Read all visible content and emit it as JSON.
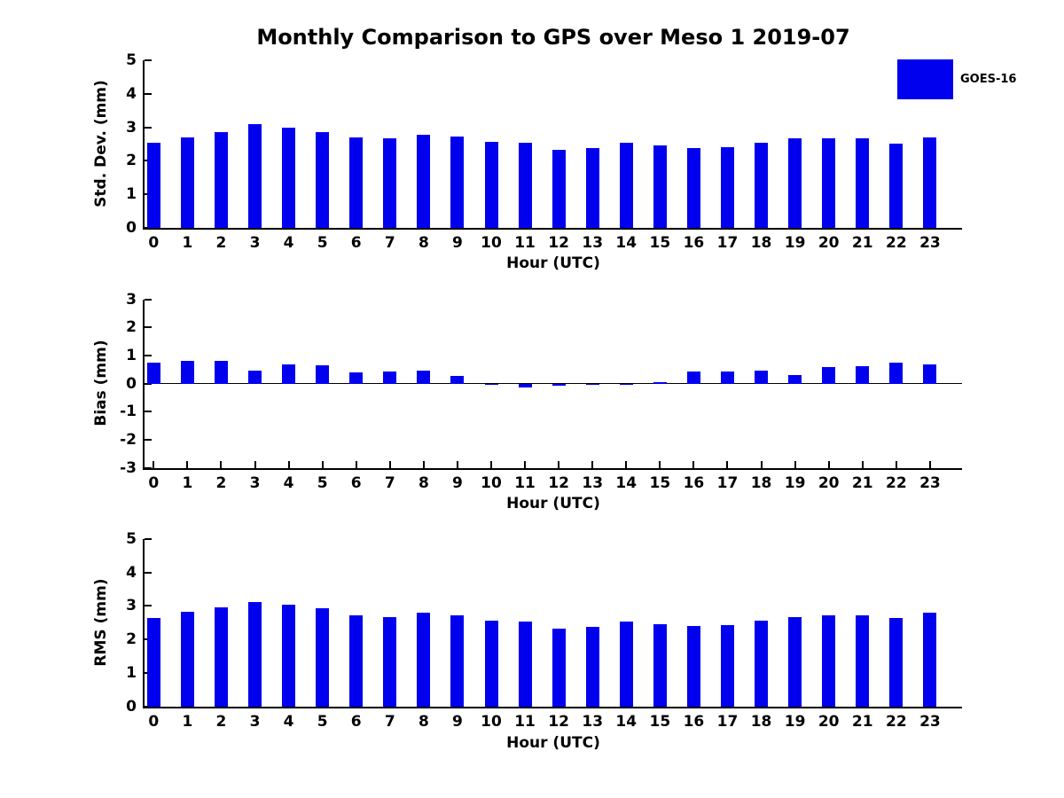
{
  "title": "Monthly Comparison to GPS over Meso 1 2019-07",
  "legend": {
    "label": "GOES-16",
    "swatch_color": "#0000EE",
    "position": "top-right"
  },
  "colors": {
    "bar": "#0000EE",
    "axis": "#000000",
    "text": "#000000",
    "background": "#FFFFFF"
  },
  "chart_data": [
    {
      "type": "bar",
      "panel": "std_dev",
      "ylabel": "Std. Dev. (mm)",
      "xlabel": "Hour (UTC)",
      "ylim": [
        0,
        5
      ],
      "yticks": [
        0,
        1,
        2,
        3,
        4,
        5
      ],
      "grid": false,
      "legend_entries": [
        "GOES-16"
      ],
      "categories": [
        "0",
        "1",
        "2",
        "3",
        "4",
        "5",
        "6",
        "7",
        "8",
        "9",
        "10",
        "11",
        "12",
        "13",
        "14",
        "15",
        "16",
        "17",
        "18",
        "19",
        "20",
        "21",
        "22",
        "23"
      ],
      "series": [
        {
          "name": "GOES-16",
          "values": [
            2.55,
            2.71,
            2.86,
            3.1,
            2.99,
            2.86,
            2.71,
            2.66,
            2.79,
            2.73,
            2.57,
            2.53,
            2.33,
            2.37,
            2.54,
            2.45,
            2.37,
            2.4,
            2.53,
            2.66,
            2.66,
            2.68,
            2.52,
            2.71
          ]
        }
      ]
    },
    {
      "type": "bar",
      "panel": "bias",
      "ylabel": "Bias (mm)",
      "xlabel": "Hour (UTC)",
      "ylim": [
        -3,
        3
      ],
      "yticks": [
        -3,
        -2,
        -1,
        0,
        1,
        2,
        3
      ],
      "grid": false,
      "categories": [
        "0",
        "1",
        "2",
        "3",
        "4",
        "5",
        "6",
        "7",
        "8",
        "9",
        "10",
        "11",
        "12",
        "13",
        "14",
        "15",
        "16",
        "17",
        "18",
        "19",
        "20",
        "21",
        "22",
        "23"
      ],
      "series": [
        {
          "name": "GOES-16",
          "values": [
            0.74,
            0.82,
            0.82,
            0.47,
            0.69,
            0.66,
            0.41,
            0.44,
            0.48,
            0.27,
            -0.02,
            -0.15,
            -0.07,
            -0.04,
            -0.03,
            0.05,
            0.44,
            0.43,
            0.47,
            0.32,
            0.58,
            0.62,
            0.74,
            0.69
          ]
        }
      ]
    },
    {
      "type": "bar",
      "panel": "rms",
      "ylabel": "RMS (mm)",
      "xlabel": "Hour (UTC)",
      "ylim": [
        0,
        5
      ],
      "yticks": [
        0,
        1,
        2,
        3,
        4,
        5
      ],
      "grid": false,
      "categories": [
        "0",
        "1",
        "2",
        "3",
        "4",
        "5",
        "6",
        "7",
        "8",
        "9",
        "10",
        "11",
        "12",
        "13",
        "14",
        "15",
        "16",
        "17",
        "18",
        "19",
        "20",
        "21",
        "22",
        "23"
      ],
      "series": [
        {
          "name": "GOES-16",
          "values": [
            2.65,
            2.82,
            2.97,
            3.12,
            3.05,
            2.93,
            2.73,
            2.68,
            2.81,
            2.73,
            2.57,
            2.53,
            2.33,
            2.37,
            2.54,
            2.46,
            2.4,
            2.43,
            2.57,
            2.68,
            2.71,
            2.73,
            2.63,
            2.8
          ]
        }
      ]
    }
  ]
}
